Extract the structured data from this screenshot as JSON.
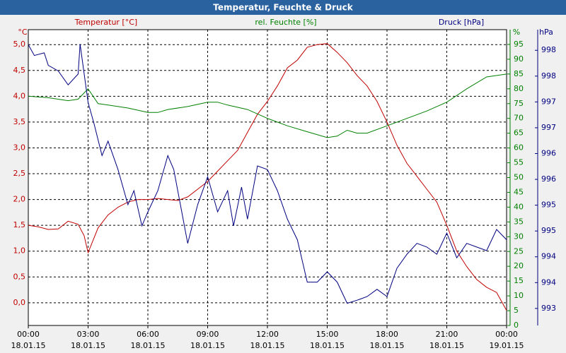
{
  "chart_data": {
    "type": "line",
    "title": "Temperatur, Feuchte & Druck",
    "corner_label": "°C",
    "ylabel": "Temperatur [°C]",
    "y2label": "rel. Feuchte [%]",
    "y2unit": "%",
    "y3label": "Druck [hPa]",
    "y3unit": "hPa",
    "xlim": [
      0,
      24
    ],
    "xticks": [
      {
        "value": 0,
        "label": "00:00",
        "sublabel": "18.01.15"
      },
      {
        "value": 3,
        "label": "03:00",
        "sublabel": "18.01.15"
      },
      {
        "value": 6,
        "label": "06:00",
        "sublabel": "18.01.15"
      },
      {
        "value": 9,
        "label": "09:00",
        "sublabel": "18.01.15"
      },
      {
        "value": 12,
        "label": "12:00",
        "sublabel": "18.01.15"
      },
      {
        "value": 15,
        "label": "15:00",
        "sublabel": "18.01.15"
      },
      {
        "value": 18,
        "label": "18:00",
        "sublabel": "18.01.15"
      },
      {
        "value": 21,
        "label": "21:00",
        "sublabel": "18.01.15"
      },
      {
        "value": 24,
        "label": "00:00",
        "sublabel": "19.01.15"
      }
    ],
    "ylim": [
      -0.44,
      5.29
    ],
    "yticks": [
      {
        "value": 0,
        "label": "0,0"
      },
      {
        "value": 0.5,
        "label": "0,5"
      },
      {
        "value": 1,
        "label": "1,0"
      },
      {
        "value": 1.5,
        "label": "1,5"
      },
      {
        "value": 2,
        "label": "2,0"
      },
      {
        "value": 2.5,
        "label": "2,5"
      },
      {
        "value": 3,
        "label": "3,0"
      },
      {
        "value": 3.5,
        "label": "3,5"
      },
      {
        "value": 4,
        "label": "4,0"
      },
      {
        "value": 4.5,
        "label": "4,5"
      },
      {
        "value": 5,
        "label": "5,0"
      }
    ],
    "y2lim": [
      0,
      100
    ],
    "y2ticks": [
      0,
      5,
      10,
      15,
      20,
      25,
      30,
      35,
      40,
      45,
      50,
      55,
      60,
      65,
      70,
      75,
      80,
      85,
      90,
      95
    ],
    "y3lim": [
      992.67,
      998.4
    ],
    "y3ticks": [
      {
        "value": 993,
        "label": "993"
      },
      {
        "value": 993.5,
        "label": "994"
      },
      {
        "value": 994,
        "label": "994"
      },
      {
        "value": 994.5,
        "label": "995"
      },
      {
        "value": 995,
        "label": "995"
      },
      {
        "value": 995.5,
        "label": "996"
      },
      {
        "value": 996,
        "label": "996"
      },
      {
        "value": 996.5,
        "label": "997"
      },
      {
        "value": 997,
        "label": "997"
      },
      {
        "value": 997.5,
        "label": "998"
      },
      {
        "value": 998,
        "label": "998"
      }
    ],
    "grid": true,
    "series": [
      {
        "name": "Temperatur",
        "color": "#c00000",
        "axis": "y",
        "x": [
          0,
          0.5,
          1,
          1.5,
          2,
          2.5,
          2.8,
          3,
          3.5,
          4,
          4.5,
          5,
          5.5,
          6,
          6.5,
          7,
          7.5,
          8,
          8.5,
          9,
          9.5,
          10,
          10.5,
          11,
          11.5,
          12,
          12.5,
          13,
          13.5,
          14,
          14.5,
          15,
          15.5,
          16,
          16.5,
          17,
          17.5,
          18,
          18.5,
          19,
          19.5,
          20,
          20.5,
          21,
          21.5,
          22,
          22.5,
          23,
          23.5,
          24
        ],
        "values": [
          1.5,
          1.47,
          1.42,
          1.43,
          1.58,
          1.52,
          1.3,
          0.97,
          1.45,
          1.7,
          1.85,
          1.95,
          2.0,
          2.0,
          2.02,
          2.0,
          1.98,
          2.05,
          2.2,
          2.35,
          2.55,
          2.75,
          2.95,
          3.3,
          3.65,
          3.9,
          4.2,
          4.55,
          4.7,
          4.95,
          5.0,
          5.02,
          4.85,
          4.65,
          4.4,
          4.2,
          3.9,
          3.5,
          3.05,
          2.7,
          2.45,
          2.2,
          1.95,
          1.5,
          1.0,
          0.7,
          0.45,
          0.3,
          0.2,
          -0.15
        ]
      },
      {
        "name": "rel. Feuchte",
        "color": "#008000",
        "axis": "y2",
        "x": [
          0,
          1,
          2,
          2.5,
          3,
          3.5,
          4,
          5,
          6,
          6.5,
          7,
          8,
          9,
          9.5,
          10,
          11,
          12,
          13,
          14,
          15,
          15.5,
          16,
          16.5,
          17,
          18,
          19,
          20,
          21,
          22,
          23,
          24
        ],
        "values": [
          77.5,
          77,
          76,
          76.5,
          80,
          75,
          74.5,
          73.5,
          72,
          72,
          73,
          74,
          75.5,
          75.5,
          74.5,
          73,
          70,
          67.5,
          65.5,
          63.5,
          64,
          66,
          65,
          65,
          67.5,
          70,
          72.5,
          75.5,
          80,
          84,
          85
        ]
      },
      {
        "name": "Druck",
        "color": "#000080",
        "axis": "y3",
        "x": [
          0,
          0.3,
          0.8,
          1,
          1.5,
          2,
          2.5,
          2.6,
          3,
          3.3,
          3.7,
          4,
          4.5,
          5,
          5.3,
          5.7,
          6,
          6.5,
          7,
          7.3,
          7.7,
          8,
          8.5,
          9,
          9.5,
          10,
          10.3,
          10.7,
          11,
          11.5,
          12,
          12.5,
          13,
          13.5,
          14,
          14.5,
          15,
          15.5,
          16,
          16.5,
          17,
          17.5,
          18,
          18.5,
          19,
          19.5,
          20,
          20.5,
          21,
          21.5,
          22,
          22.5,
          23,
          23.5,
          24
        ],
        "values": [
          998.11,
          997.9,
          997.95,
          997.71,
          997.6,
          997.33,
          997.54,
          998.12,
          996.99,
          996.58,
          995.96,
          996.24,
          995.69,
          995.01,
          995.28,
          994.6,
          994.87,
          995.28,
          995.96,
          995.69,
          994.87,
          994.26,
          995.01,
          995.55,
          994.87,
          995.28,
          994.6,
          995.35,
          994.73,
          995.76,
          995.69,
          995.28,
          994.73,
          994.33,
          993.51,
          993.51,
          993.71,
          993.51,
          993.1,
          993.16,
          993.23,
          993.37,
          993.23,
          993.78,
          994.05,
          994.26,
          994.19,
          994.05,
          994.46,
          993.98,
          994.26,
          994.19,
          994.12,
          994.53,
          994.33
        ]
      }
    ]
  }
}
